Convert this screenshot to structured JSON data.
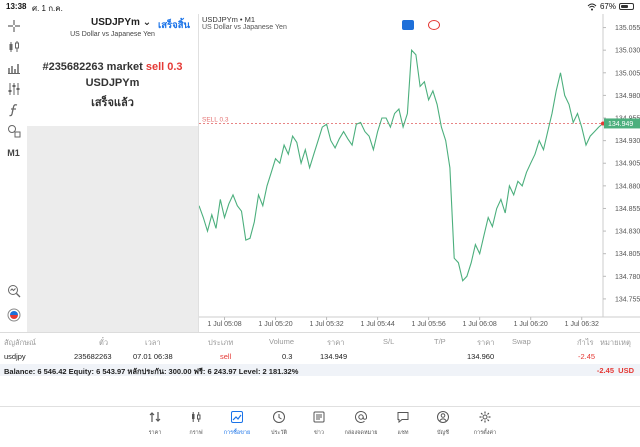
{
  "status_bar": {
    "time": "13:38",
    "date": "ศ. 1 ก.ค.",
    "battery": "67%",
    "battery_level": 0.67
  },
  "left_toolbar": {
    "items": [
      {
        "icon": "crosshair-icon"
      },
      {
        "icon": "candlestick-icon"
      },
      {
        "icon": "bar-chart-icon"
      },
      {
        "icon": "sliders-icon"
      },
      {
        "icon": "function-icon"
      },
      {
        "icon": "shapes-icon"
      },
      {
        "icon": "timeframe-label",
        "label": "M1"
      },
      {
        "icon": "zoom-chart-icon"
      },
      {
        "icon": "trade-app-icon"
      }
    ]
  },
  "order_panel": {
    "symbol": "USDJPYm",
    "done_label": "เสร็จสิ้น",
    "description": "US Dollar vs Japanese Yen",
    "order_prefix": "#235682263 market",
    "order_side": "sell 0.3",
    "order_symbol": "USDJPYm",
    "order_status": "เสร็จแล้ว"
  },
  "chart": {
    "title": "USDJPYm • M1",
    "description": "US Dollar vs Japanese Yen",
    "sell_line_label": "SELL 0.3",
    "current_price_label": "134.949",
    "colors": {
      "line": "#4caf7d",
      "sell_line": "#e57373",
      "grid": "#dddddd",
      "badge_blue": "#1e6fd9",
      "badge_red": "#e53935",
      "price_tag": "#4caf7d"
    }
  },
  "chart_data": {
    "type": "line",
    "title": "USDJPYm • M1",
    "xlabel": "",
    "ylabel": "",
    "ylim": [
      134.735,
      135.07
    ],
    "y_ticks": [
      "135.055",
      "135.030",
      "135.005",
      "134.980",
      "134.955",
      "134.930",
      "134.905",
      "134.880",
      "134.855",
      "134.830",
      "134.805",
      "134.780",
      "134.755"
    ],
    "x_ticks": [
      {
        "label": "1 Jul 05:08",
        "index": 6
      },
      {
        "label": "1 Jul 05:20",
        "index": 18
      },
      {
        "label": "1 Jul 05:32",
        "index": 30
      },
      {
        "label": "1 Jul 05:44",
        "index": 42
      },
      {
        "label": "1 Jul 05:56",
        "index": 54
      },
      {
        "label": "1 Jul 06:08",
        "index": 66
      },
      {
        "label": "1 Jul 06:20",
        "index": 78
      },
      {
        "label": "1 Jul 06:32",
        "index": 90
      }
    ],
    "x_count": 96,
    "sell_level": 134.949,
    "series": [
      {
        "values": [
          134.858,
          134.845,
          134.83,
          134.848,
          134.833,
          134.865,
          134.845,
          134.86,
          134.87,
          134.858,
          134.852,
          134.82,
          134.822,
          134.84,
          134.87,
          134.858,
          134.88,
          134.895,
          134.91,
          134.905,
          134.925,
          134.915,
          134.935,
          134.928,
          134.905,
          134.92,
          134.9,
          134.915,
          134.93,
          134.945,
          134.948,
          134.93,
          134.922,
          134.932,
          134.94,
          134.932,
          134.925,
          134.948,
          134.95,
          134.94,
          134.935,
          134.92,
          134.94,
          134.955,
          134.955,
          134.945,
          134.96,
          134.965,
          134.945,
          134.96,
          135.03,
          135.025,
          134.99,
          134.995,
          134.975,
          134.985,
          134.97,
          134.945,
          134.93,
          134.9,
          134.8,
          134.795,
          134.775,
          134.78,
          134.795,
          134.815,
          134.805,
          134.825,
          134.845,
          134.835,
          134.855,
          134.865,
          134.85,
          134.88,
          134.87,
          134.885,
          134.88,
          134.895,
          134.905,
          134.915,
          134.93,
          134.92,
          134.94,
          134.96,
          134.985,
          135.005,
          134.98,
          134.97,
          134.95,
          134.96,
          134.945,
          134.925,
          134.935,
          134.94,
          134.945,
          134.949
        ]
      }
    ],
    "grid": true,
    "legend": "none"
  },
  "trades_table": {
    "headers": [
      "สัญลักษณ์",
      "ตั๋ว",
      "เวลา",
      "ประเภท",
      "Volume",
      "ราคา",
      "S/L",
      "T/P",
      "ราคา",
      "Swap",
      "กำไร",
      "หมายเหตุ"
    ],
    "row": {
      "symbol": "usdjpy",
      "ticket": "235682263",
      "time": "07.01 06:38",
      "type": "sell",
      "volume": "0.3",
      "price": "134.949",
      "sl": "",
      "tp": "",
      "current_price": "134.960",
      "swap": "",
      "profit": "-2.45",
      "note": ""
    },
    "balance_text": "Balance: 6 546.42 Equity: 6 543.97 หลักประกัน: 300.00 ฟรี: 6 243.97 Level: 2 181.32%",
    "balance_profit": "-2.45",
    "balance_currency": "USD"
  },
  "bottom_nav": {
    "items": [
      {
        "label": "ราคา",
        "icon": "quotes-icon"
      },
      {
        "label": "กราฟ",
        "icon": "chart-icon"
      },
      {
        "label": "การซื้อขาย",
        "icon": "trade-icon",
        "active": true
      },
      {
        "label": "ประวัติ",
        "icon": "history-icon"
      },
      {
        "label": "ข่าว",
        "icon": "news-icon"
      },
      {
        "label": "กล่องจดหมาย",
        "icon": "mailbox-icon"
      },
      {
        "label": "แชท",
        "icon": "chat-icon"
      },
      {
        "label": "บัญชี",
        "icon": "account-icon"
      },
      {
        "label": "การตั้งค่า",
        "icon": "settings-icon"
      }
    ]
  }
}
